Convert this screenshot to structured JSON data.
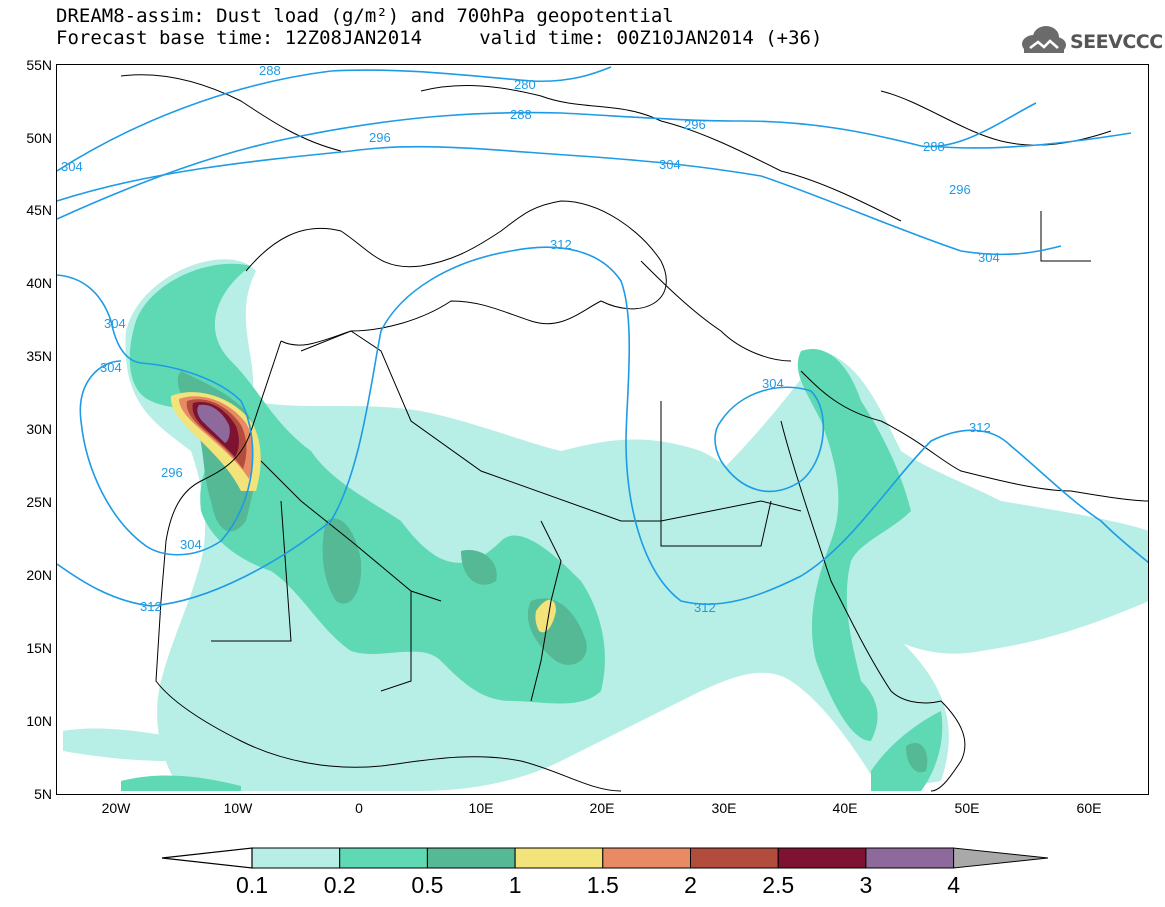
{
  "header": {
    "title_line1": "DREAM8-assim: Dust load (g/m²) and 700hPa geopotential",
    "title_line2": "Forecast base time: 12Z08JAN2014     valid time: 00Z10JAN2014 (+36)"
  },
  "logo": {
    "text": "SEEVCCC",
    "icon": "cloud-icon"
  },
  "axes": {
    "lat_labels": [
      "55N",
      "50N",
      "45N",
      "40N",
      "35N",
      "30N",
      "25N",
      "20N",
      "15N",
      "10N",
      "5N"
    ],
    "lon_labels": [
      "20W",
      "10W",
      "0",
      "10E",
      "20E",
      "30E",
      "40E",
      "50E",
      "60E"
    ]
  },
  "contour_labels": [
    "280",
    "288",
    "296",
    "304",
    "312",
    "296",
    "304",
    "304",
    "288",
    "296",
    "304",
    "312",
    "304",
    "296",
    "304",
    "312",
    "304",
    "312",
    "288",
    "312"
  ],
  "colorbar": {
    "labels": [
      "0.1",
      "0.2",
      "0.5",
      "1",
      "1.5",
      "2",
      "2.5",
      "3",
      "4"
    ],
    "colors": [
      "#b7efe6",
      "#5fd9b4",
      "#55b995",
      "#f2e37a",
      "#e88a63",
      "#b24d3e",
      "#7e1232",
      "#8e6a9c",
      "#a9a9a9"
    ]
  },
  "colors": {
    "contour": "#1e9be6",
    "dust_low": "#b7efe6",
    "dust_mid": "#5fd9b4",
    "dust_high": "#55b995"
  }
}
